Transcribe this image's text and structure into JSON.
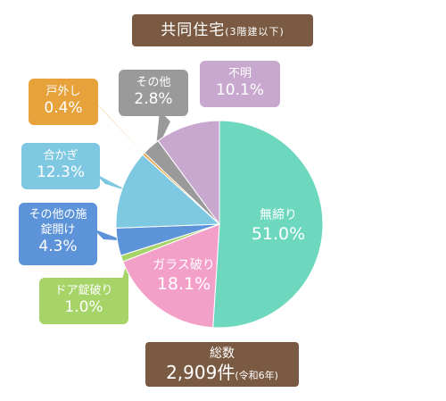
{
  "header": {
    "title": "共同住宅",
    "subtitle": "(3階建以下)"
  },
  "total": {
    "label": "総数",
    "value": "2,909件",
    "period": "(令和6年)"
  },
  "chart_data": {
    "type": "pie",
    "title": "共同住宅(3階建以下)",
    "start_angle_deg": 0,
    "direction": "clockwise",
    "slices": [
      {
        "label": "無締り",
        "value": 51.0,
        "value_label": "51.0%",
        "color": "#6dd8be"
      },
      {
        "label": "ガラス破り",
        "value": 18.1,
        "value_label": "18.1%",
        "color": "#f3a0c8"
      },
      {
        "label": "ドア錠破り",
        "value": 1.0,
        "value_label": "1.0%",
        "color": "#a6d468"
      },
      {
        "label": "その他の施錠開け",
        "value": 4.3,
        "value_label": "4.3%",
        "color": "#5d93d8"
      },
      {
        "label": "合かぎ",
        "value": 12.3,
        "value_label": "12.3%",
        "color": "#7ec8e2"
      },
      {
        "label": "戸外し",
        "value": 0.4,
        "value_label": "0.4%",
        "color": "#e8a23b"
      },
      {
        "label": "その他",
        "value": 2.8,
        "value_label": "2.8%",
        "color": "#9a9a9a"
      },
      {
        "label": "不明",
        "value": 10.1,
        "value_label": "10.1%",
        "color": "#c9a8cf"
      }
    ]
  }
}
